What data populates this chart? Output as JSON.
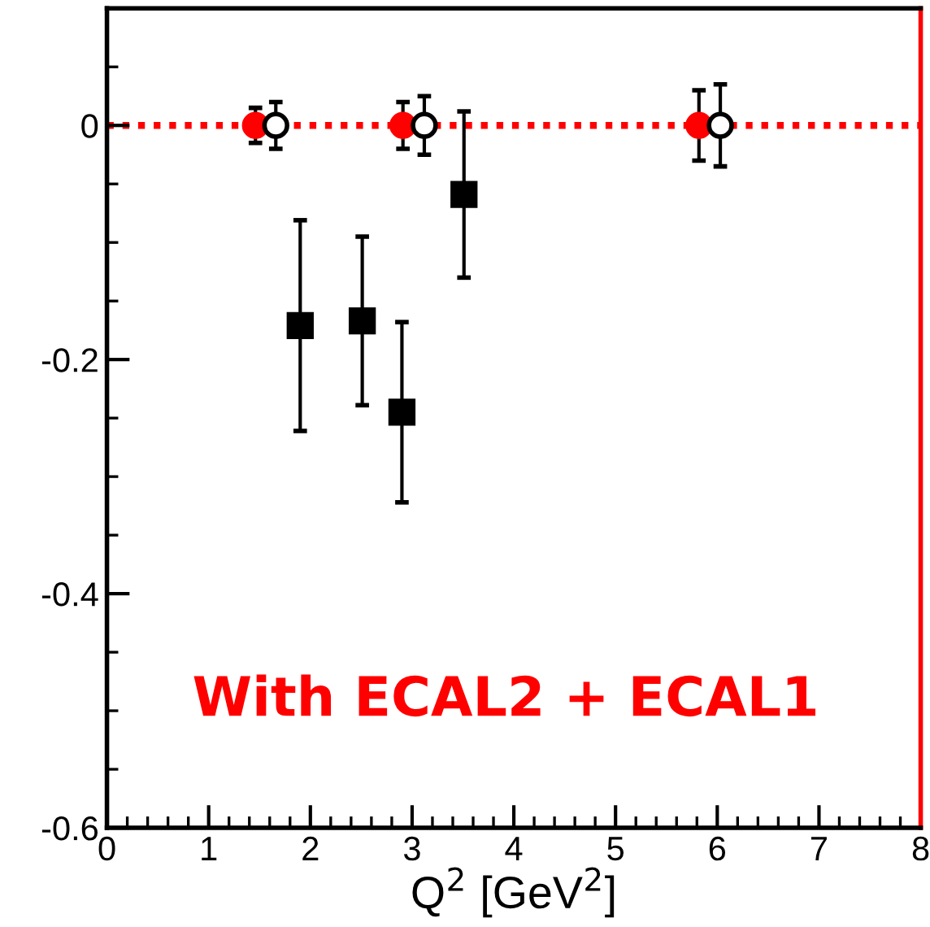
{
  "chart_data": {
    "type": "scatter",
    "xlabel": "Q$^{2}$ [GeV$^{2}$]",
    "xlim": [
      0,
      8
    ],
    "xticks": [
      0,
      1,
      2,
      3,
      4,
      5,
      6,
      7,
      8
    ],
    "ylim": [
      -0.6,
      0.1
    ],
    "yticks": [
      -0.6,
      -0.4,
      -0.2,
      0
    ],
    "grid": false,
    "legend": false,
    "series": [
      {
        "color": "#ff0000",
        "marker": "circle",
        "x": [
          1.46,
          2.91,
          5.82
        ],
        "values": [
          0,
          0,
          0
        ],
        "errors": [
          0.015,
          0.02,
          0.03
        ]
      },
      {
        "color": "#000000",
        "marker": "circle",
        "x": [
          1.66,
          3.12,
          6.03
        ],
        "values": [
          0,
          0,
          0
        ],
        "errors": [
          0.02,
          0.025,
          0.035
        ]
      },
      {
        "color": "#000000",
        "marker": "square",
        "x": [
          1.9,
          2.51,
          2.9,
          3.51
        ],
        "values": [
          -0.171,
          -0.167,
          -0.245,
          -0.059
        ],
        "errors": [
          0.09,
          0.072,
          0.077,
          0.071
        ]
      }
    ],
    "ref_lines": [
      {
        "axis": "y",
        "value": 0,
        "color": "#ff0000",
        "line_style": "dotted"
      }
    ],
    "annotations": [
      "With ECAL2 + ECAL1"
    ]
  }
}
